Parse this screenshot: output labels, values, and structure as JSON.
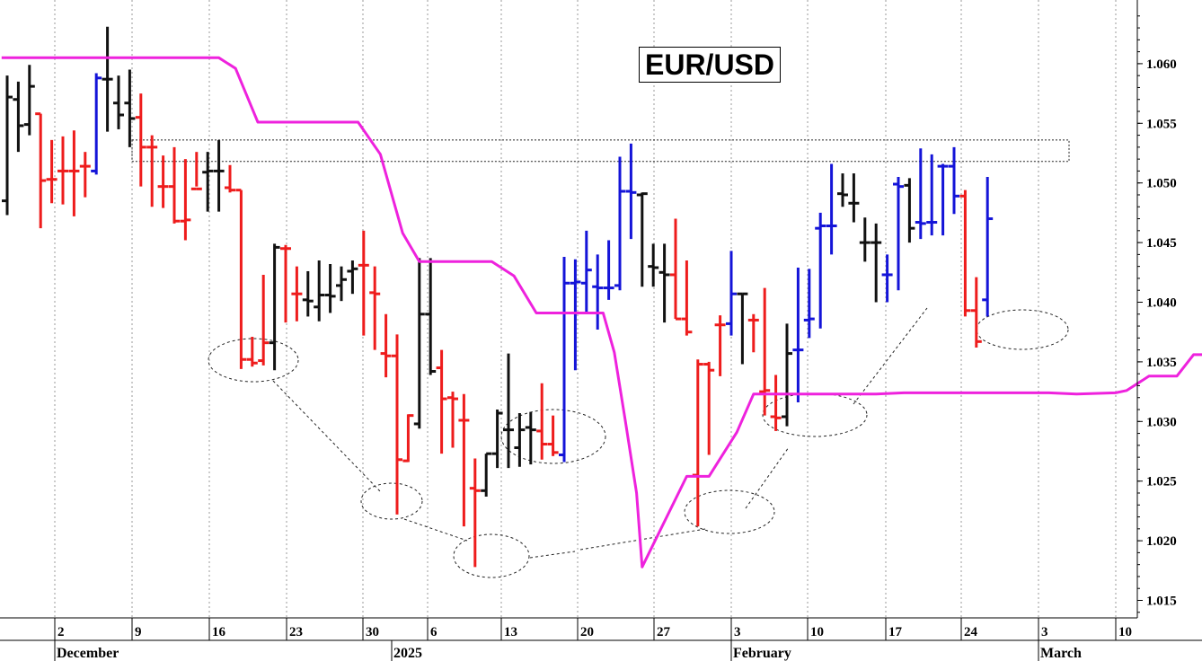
{
  "chart_data": {
    "type": "ohlc",
    "title": "EUR/USD",
    "y_ticks": [
      "1.060",
      "1.055",
      "1.050",
      "1.045",
      "1.040",
      "1.035",
      "1.030",
      "1.025",
      "1.020",
      "1.015"
    ],
    "ylim": [
      1.012,
      1.065
    ],
    "x_ticks": [
      "2",
      "9",
      "16",
      "23",
      "30",
      "6",
      "13",
      "20",
      "27",
      "3",
      "10",
      "17",
      "24",
      "3",
      "10"
    ],
    "month_labels": [
      "December",
      "2025",
      "February",
      "March"
    ],
    "grid": "vertical-dotted",
    "bars": [
      {
        "date": "2024-11-29",
        "open": 1.0485,
        "high": 1.059,
        "low": 1.0473,
        "close": 1.0572,
        "color": "black"
      },
      {
        "date": "2024-12-02",
        "open": 1.057,
        "high": 1.0585,
        "low": 1.0526,
        "close": 1.0548,
        "color": "black"
      },
      {
        "date": "2024-12-03",
        "open": 1.0549,
        "high": 1.0599,
        "low": 1.054,
        "close": 1.0581,
        "color": "black"
      },
      {
        "date": "2024-12-04",
        "open": 1.0558,
        "high": 1.0558,
        "low": 1.0462,
        "close": 1.0502,
        "color": "red"
      },
      {
        "date": "2024-12-05",
        "open": 1.0503,
        "high": 1.0536,
        "low": 1.0483,
        "close": 1.0503,
        "color": "red"
      },
      {
        "date": "2024-12-06",
        "open": 1.051,
        "high": 1.0539,
        "low": 1.0482,
        "close": 1.051,
        "color": "red"
      },
      {
        "date": "2024-12-09",
        "open": 1.051,
        "high": 1.0544,
        "low": 1.0472,
        "close": 1.051,
        "color": "red"
      },
      {
        "date": "2024-12-10",
        "open": 1.0514,
        "high": 1.0526,
        "low": 1.0488,
        "close": 1.0514,
        "color": "red"
      },
      {
        "date": "2024-12-11",
        "open": 1.051,
        "high": 1.0592,
        "low": 1.0507,
        "close": 1.0588,
        "color": "blue"
      },
      {
        "date": "2024-12-12",
        "open": 1.0587,
        "high": 1.0631,
        "low": 1.0543,
        "close": 1.0587,
        "color": "black"
      },
      {
        "date": "2024-12-13",
        "open": 1.0567,
        "high": 1.059,
        "low": 1.0545,
        "close": 1.0557,
        "color": "black"
      },
      {
        "date": "2024-12-16",
        "open": 1.0567,
        "high": 1.0595,
        "low": 1.053,
        "close": 1.0554,
        "color": "black"
      },
      {
        "date": "2024-12-17",
        "open": 1.0555,
        "high": 1.0575,
        "low": 1.0497,
        "close": 1.053,
        "color": "red"
      },
      {
        "date": "2024-12-18",
        "open": 1.053,
        "high": 1.054,
        "low": 1.048,
        "close": 1.053,
        "color": "red"
      },
      {
        "date": "2024-12-19",
        "open": 1.0497,
        "high": 1.0523,
        "low": 1.0479,
        "close": 1.0497,
        "color": "red"
      },
      {
        "date": "2024-12-20",
        "open": 1.0497,
        "high": 1.053,
        "low": 1.0466,
        "close": 1.0468,
        "color": "red"
      },
      {
        "date": "2024-12-23",
        "open": 1.0468,
        "high": 1.052,
        "low": 1.0452,
        "close": 1.0469,
        "color": "red"
      },
      {
        "date": "2024-12-24",
        "open": 1.0495,
        "high": 1.0526,
        "low": 1.0497,
        "close": 1.0495,
        "color": "red"
      },
      {
        "date": "2024-12-25",
        "open": 1.0509,
        "high": 1.0526,
        "low": 1.0476,
        "close": 1.051,
        "color": "black"
      },
      {
        "date": "2024-12-26",
        "open": 1.051,
        "high": 1.0536,
        "low": 1.0476,
        "close": 1.051,
        "color": "black"
      },
      {
        "date": "2024-12-27",
        "open": 1.0496,
        "high": 1.0515,
        "low": 1.0492,
        "close": 1.0494,
        "color": "red"
      },
      {
        "date": "2024-12-30",
        "open": 1.0494,
        "high": 1.0494,
        "low": 1.0344,
        "close": 1.0352,
        "color": "red"
      },
      {
        "date": "2024-12-31",
        "open": 1.0352,
        "high": 1.0371,
        "low": 1.0346,
        "close": 1.0349,
        "color": "red"
      },
      {
        "date": "2025-01-01",
        "open": 1.0351,
        "high": 1.0423,
        "low": 1.0347,
        "close": 1.0366,
        "color": "red"
      },
      {
        "date": "2025-01-02",
        "open": 1.0366,
        "high": 1.0449,
        "low": 1.0343,
        "close": 1.0446,
        "color": "black"
      },
      {
        "date": "2025-01-03",
        "open": 1.0445,
        "high": 1.0448,
        "low": 1.0383,
        "close": 1.0445,
        "color": "red"
      },
      {
        "date": "2025-01-06",
        "open": 1.0407,
        "high": 1.043,
        "low": 1.0384,
        "close": 1.0407,
        "color": "red"
      },
      {
        "date": "2025-01-07",
        "open": 1.0402,
        "high": 1.0426,
        "low": 1.0388,
        "close": 1.0401,
        "color": "black"
      },
      {
        "date": "2025-01-08",
        "open": 1.0396,
        "high": 1.0435,
        "low": 1.0384,
        "close": 1.0406,
        "color": "black"
      },
      {
        "date": "2025-01-09",
        "open": 1.0406,
        "high": 1.0432,
        "low": 1.0391,
        "close": 1.0405,
        "color": "black"
      },
      {
        "date": "2025-01-10",
        "open": 1.0414,
        "high": 1.043,
        "low": 1.0401,
        "close": 1.0419,
        "color": "black"
      },
      {
        "date": "2025-01-13",
        "open": 1.0426,
        "high": 1.0435,
        "low": 1.0407,
        "close": 1.0428,
        "color": "black"
      },
      {
        "date": "2025-01-14",
        "open": 1.0431,
        "high": 1.046,
        "low": 1.0372,
        "close": 1.0431,
        "color": "red"
      },
      {
        "date": "2025-01-15",
        "open": 1.0408,
        "high": 1.043,
        "low": 1.036,
        "close": 1.0407,
        "color": "red"
      },
      {
        "date": "2025-01-16",
        "open": 1.0357,
        "high": 1.039,
        "low": 1.0337,
        "close": 1.0355,
        "color": "red"
      },
      {
        "date": "2025-01-17",
        "open": 1.0355,
        "high": 1.0373,
        "low": 1.0222,
        "close": 1.0268,
        "color": "red"
      },
      {
        "date": "2025-01-20",
        "open": 1.0267,
        "high": 1.0306,
        "low": 1.0266,
        "close": 1.0305,
        "color": "red"
      },
      {
        "date": "2025-01-21",
        "open": 1.0298,
        "high": 1.0437,
        "low": 1.0294,
        "close": 1.039,
        "color": "black"
      },
      {
        "date": "2025-01-22",
        "open": 1.039,
        "high": 1.0437,
        "low": 1.0339,
        "close": 1.0342,
        "color": "black"
      },
      {
        "date": "2025-01-23",
        "open": 1.0345,
        "high": 1.036,
        "low": 1.0273,
        "close": 1.0319,
        "color": "red"
      },
      {
        "date": "2025-01-24",
        "open": 1.032,
        "high": 1.0325,
        "low": 1.0278,
        "close": 1.0319,
        "color": "red"
      },
      {
        "date": "2025-01-27",
        "open": 1.0301,
        "high": 1.0323,
        "low": 1.0212,
        "close": 1.0301,
        "color": "red"
      },
      {
        "date": "2025-01-28",
        "open": 1.0244,
        "high": 1.0269,
        "low": 1.0178,
        "close": 1.0242,
        "color": "red"
      },
      {
        "date": "2025-01-29",
        "open": 1.0242,
        "high": 1.0273,
        "low": 1.0237,
        "close": 1.0273,
        "color": "black"
      },
      {
        "date": "2025-01-30",
        "open": 1.0273,
        "high": 1.031,
        "low": 1.0261,
        "close": 1.0307,
        "color": "black"
      },
      {
        "date": "2025-01-31",
        "open": 1.0293,
        "high": 1.0357,
        "low": 1.0261,
        "close": 1.0293,
        "color": "black"
      },
      {
        "date": "2025-02-03",
        "open": 1.0278,
        "high": 1.0307,
        "low": 1.0262,
        "close": 1.0293,
        "color": "black"
      },
      {
        "date": "2025-02-04",
        "open": 1.0295,
        "high": 1.0308,
        "low": 1.0264,
        "close": 1.0293,
        "color": "black"
      },
      {
        "date": "2025-02-05",
        "open": 1.0292,
        "high": 1.0332,
        "low": 1.0268,
        "close": 1.0281,
        "color": "red"
      },
      {
        "date": "2025-02-06",
        "open": 1.0281,
        "high": 1.0305,
        "low": 1.0271,
        "close": 1.0274,
        "color": "red"
      },
      {
        "date": "2025-02-07",
        "open": 1.0272,
        "high": 1.0438,
        "low": 1.0266,
        "close": 1.0416,
        "color": "blue"
      },
      {
        "date": "2025-02-10",
        "open": 1.0416,
        "high": 1.0436,
        "low": 1.0343,
        "close": 1.0417,
        "color": "blue"
      },
      {
        "date": "2025-02-11",
        "open": 1.0416,
        "high": 1.046,
        "low": 1.0392,
        "close": 1.0427,
        "color": "blue"
      },
      {
        "date": "2025-02-12",
        "open": 1.0413,
        "high": 1.044,
        "low": 1.0377,
        "close": 1.0412,
        "color": "blue"
      },
      {
        "date": "2025-02-13",
        "open": 1.0412,
        "high": 1.0452,
        "low": 1.0402,
        "close": 1.0412,
        "color": "blue"
      },
      {
        "date": "2025-02-14",
        "open": 1.0414,
        "high": 1.0522,
        "low": 1.041,
        "close": 1.0493,
        "color": "blue"
      },
      {
        "date": "2025-02-17",
        "open": 1.0493,
        "high": 1.0533,
        "low": 1.0453,
        "close": 1.0492,
        "color": "blue"
      },
      {
        "date": "2025-02-18",
        "open": 1.049,
        "high": 1.0492,
        "low": 1.0413,
        "close": 1.0491,
        "color": "black"
      },
      {
        "date": "2025-02-19",
        "open": 1.043,
        "high": 1.0449,
        "low": 1.0413,
        "close": 1.0429,
        "color": "black"
      },
      {
        "date": "2025-02-20",
        "open": 1.0425,
        "high": 1.0449,
        "low": 1.0383,
        "close": 1.0423,
        "color": "black"
      },
      {
        "date": "2025-02-21",
        "open": 1.0423,
        "high": 1.047,
        "low": 1.0386,
        "close": 1.0386,
        "color": "red"
      },
      {
        "date": "2025-02-24",
        "open": 1.0386,
        "high": 1.0435,
        "low": 1.0372,
        "close": 1.0375,
        "color": "red"
      },
      {
        "date": "2025-02-25",
        "open": 1.0255,
        "high": 1.0352,
        "low": 1.0212,
        "close": 1.0348,
        "color": "red"
      },
      {
        "date": "2025-02-26",
        "open": 1.0348,
        "high": 1.035,
        "low": 1.0272,
        "close": 1.0343,
        "color": "red"
      },
      {
        "date": "2025-02-27",
        "open": 1.0381,
        "high": 1.0389,
        "low": 1.0338,
        "close": 1.0381,
        "color": "red"
      },
      {
        "date": "2025-02-28",
        "open": 1.0382,
        "high": 1.0443,
        "low": 1.0372,
        "close": 1.0407,
        "color": "blue"
      },
      {
        "date": "2025-03-03",
        "open": 1.0407,
        "high": 1.0407,
        "low": 1.0348,
        "close": 1.0407,
        "color": "black"
      },
      {
        "date": "2025-03-04",
        "open": 1.0385,
        "high": 1.039,
        "low": 1.0358,
        "close": 1.0385,
        "color": "red"
      },
      {
        "date": "2025-03-05",
        "open": 1.0325,
        "high": 1.0412,
        "low": 1.0305,
        "close": 1.0326,
        "color": "red"
      },
      {
        "date": "2025-03-06",
        "open": 1.0304,
        "high": 1.0339,
        "low": 1.0292,
        "close": 1.0303,
        "color": "red"
      },
      {
        "date": "2025-03-07",
        "open": 1.0304,
        "high": 1.0382,
        "low": 1.0296,
        "close": 1.0357,
        "color": "black"
      },
      {
        "date": "2025-03-10",
        "open": 1.036,
        "high": 1.0429,
        "low": 1.0316,
        "close": 1.036,
        "color": "blue"
      },
      {
        "date": "2025-03-11",
        "open": 1.0385,
        "high": 1.0428,
        "low": 1.037,
        "close": 1.0386,
        "color": "blue"
      },
      {
        "date": "2025-03-12",
        "open": 1.0462,
        "high": 1.0475,
        "low": 1.0378,
        "close": 1.0464,
        "color": "blue"
      },
      {
        "date": "2025-03-13",
        "open": 1.0464,
        "high": 1.0516,
        "low": 1.044,
        "close": 1.0464,
        "color": "blue"
      },
      {
        "date": "2025-03-14",
        "open": 1.0491,
        "high": 1.0508,
        "low": 1.048,
        "close": 1.049,
        "color": "black"
      },
      {
        "date": "2025-03-17",
        "open": 1.0483,
        "high": 1.0508,
        "low": 1.0467,
        "close": 1.0483,
        "color": "black"
      },
      {
        "date": "2025-03-18",
        "open": 1.045,
        "high": 1.0471,
        "low": 1.0434,
        "close": 1.045,
        "color": "black"
      },
      {
        "date": "2025-03-19",
        "open": 1.045,
        "high": 1.0466,
        "low": 1.04,
        "close": 1.045,
        "color": "black"
      },
      {
        "date": "2025-03-20",
        "open": 1.0423,
        "high": 1.044,
        "low": 1.04,
        "close": 1.0423,
        "color": "blue"
      },
      {
        "date": "2025-03-21",
        "open": 1.0499,
        "high": 1.0505,
        "low": 1.041,
        "close": 1.0497,
        "color": "blue"
      },
      {
        "date": "2025-03-24",
        "open": 1.0498,
        "high": 1.0504,
        "low": 1.045,
        "close": 1.0462,
        "color": "black"
      },
      {
        "date": "2025-03-25",
        "open": 1.0467,
        "high": 1.0529,
        "low": 1.0453,
        "close": 1.0466,
        "color": "blue"
      },
      {
        "date": "2025-03-26",
        "open": 1.0467,
        "high": 1.0524,
        "low": 1.0456,
        "close": 1.0467,
        "color": "blue"
      },
      {
        "date": "2025-03-27",
        "open": 1.0514,
        "high": 1.0516,
        "low": 1.0456,
        "close": 1.0514,
        "color": "blue"
      },
      {
        "date": "2025-03-28",
        "open": 1.0514,
        "high": 1.053,
        "low": 1.0474,
        "close": 1.0489,
        "color": "blue"
      },
      {
        "date": "2025-03-31",
        "open": 1.0489,
        "high": 1.0494,
        "low": 1.0388,
        "close": 1.0393,
        "color": "red"
      },
      {
        "date": "2025-04-01",
        "open": 1.0393,
        "high": 1.0421,
        "low": 1.0362,
        "close": 1.0367,
        "color": "red"
      },
      {
        "date": "2025-04-02",
        "open": 1.0402,
        "high": 1.0505,
        "low": 1.0388,
        "close": 1.047,
        "color": "blue"
      }
    ],
    "stop_line": {
      "color": "#ee22dd",
      "points": [
        [
          -0.5,
          1.0605
        ],
        [
          19.0,
          1.0605
        ],
        [
          20.5,
          1.0596
        ],
        [
          22.5,
          1.0551
        ],
        [
          31.5,
          1.0551
        ],
        [
          33.5,
          1.0524
        ],
        [
          35.5,
          1.0458
        ],
        [
          37.0,
          1.0434
        ],
        [
          43.5,
          1.0434
        ],
        [
          45.5,
          1.0422
        ],
        [
          47.5,
          1.0391
        ],
        [
          53.5,
          1.0391
        ],
        [
          54.5,
          1.0358
        ],
        [
          55.5,
          1.03
        ],
        [
          56.5,
          1.024
        ],
        [
          57.0,
          1.0178
        ],
        [
          61.0,
          1.0254
        ],
        [
          61.0,
          1.0254
        ],
        [
          63.0,
          1.0254
        ],
        [
          65.5,
          1.0291
        ],
        [
          67.0,
          1.0323
        ],
        [
          78.0,
          1.0323
        ],
        [
          80.5,
          1.0324
        ],
        [
          84.5,
          1.0324
        ],
        [
          87.0,
          1.0324
        ],
        [
          89.0,
          1.0324
        ],
        [
          90.5,
          1.0324
        ],
        [
          93.5,
          1.0324
        ],
        [
          96.0,
          1.0323
        ],
        [
          99.5,
          1.0324
        ],
        [
          100.5,
          1.0326
        ],
        [
          102.5,
          1.0338
        ],
        [
          105.0,
          1.0338
        ],
        [
          106.5,
          1.0356
        ],
        [
          110.0,
          1.0356
        ]
      ]
    }
  }
}
